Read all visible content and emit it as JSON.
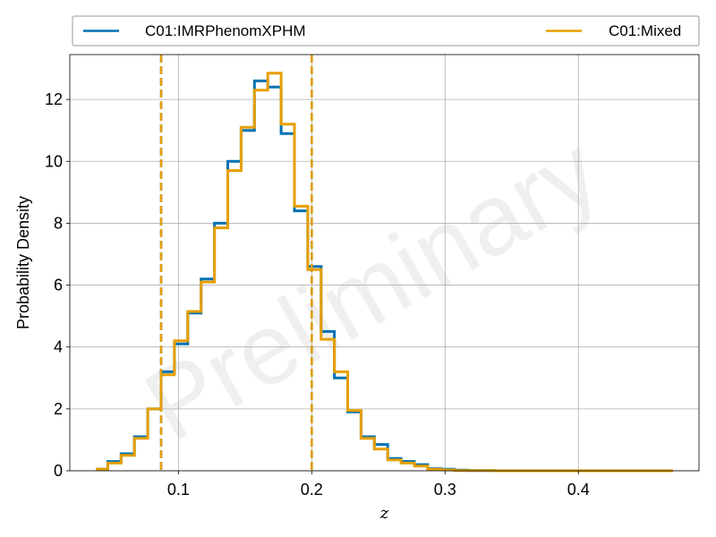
{
  "chart_data": {
    "type": "line",
    "title": "",
    "xlabel": "z",
    "ylabel": "Probability Density",
    "xlim": [
      0.0185,
      0.4905
    ],
    "ylim": [
      0,
      13.45
    ],
    "xticks": [
      0.1,
      0.2,
      0.3,
      0.4
    ],
    "xtick_labels": [
      "0.1",
      "0.2",
      "0.3",
      "0.4"
    ],
    "yticks": [
      0,
      2,
      4,
      6,
      8,
      10,
      12
    ],
    "ytick_labels": [
      "0",
      "2",
      "4",
      "6",
      "8",
      "10",
      "12"
    ],
    "grid": true,
    "legend_position": "top, outside plot",
    "watermark": "Preliminary",
    "series": [
      {
        "name": "C01:IMRPhenomXPHM",
        "color": "#0072b2",
        "edges": [
          0.038,
          0.047,
          0.057,
          0.067,
          0.077,
          0.087,
          0.097,
          0.107,
          0.117,
          0.127,
          0.137,
          0.147,
          0.157,
          0.167,
          0.177,
          0.187,
          0.197,
          0.207,
          0.217,
          0.227,
          0.237,
          0.247,
          0.257,
          0.267,
          0.277,
          0.287,
          0.297,
          0.307,
          0.317,
          0.327,
          0.337,
          0.347,
          0.357,
          0.367,
          0.377,
          0.387,
          0.397,
          0.407,
          0.417,
          0.427,
          0.437,
          0.447,
          0.457,
          0.471
        ],
        "values": [
          0.05,
          0.3,
          0.55,
          1.1,
          2.0,
          3.2,
          4.1,
          5.1,
          6.2,
          8.0,
          10.0,
          11.0,
          12.6,
          12.4,
          10.9,
          8.4,
          6.6,
          4.5,
          3.0,
          1.9,
          1.1,
          0.85,
          0.4,
          0.3,
          0.2,
          0.07,
          0.05,
          0.02,
          0.01,
          0.01,
          0.0,
          0.0,
          0.0,
          0.0,
          0.0,
          0.0,
          0.0,
          0.0,
          0.0,
          0.0,
          0.0,
          0.0,
          0.0
        ],
        "interval_lines": [
          0.087,
          0.2
        ]
      },
      {
        "name": "C01:Mixed",
        "color": "#e69f00",
        "edges": [
          0.038,
          0.047,
          0.057,
          0.067,
          0.077,
          0.087,
          0.097,
          0.107,
          0.117,
          0.127,
          0.137,
          0.147,
          0.157,
          0.167,
          0.177,
          0.187,
          0.197,
          0.207,
          0.217,
          0.227,
          0.237,
          0.247,
          0.257,
          0.267,
          0.277,
          0.287,
          0.297,
          0.307,
          0.317,
          0.327,
          0.337,
          0.347,
          0.357,
          0.367,
          0.377,
          0.387,
          0.397,
          0.407,
          0.417,
          0.427,
          0.437,
          0.447,
          0.457,
          0.471
        ],
        "values": [
          0.05,
          0.25,
          0.5,
          1.05,
          2.0,
          3.1,
          4.2,
          5.15,
          6.1,
          7.85,
          9.7,
          11.1,
          12.3,
          12.85,
          11.2,
          8.55,
          6.5,
          4.25,
          3.2,
          1.95,
          1.05,
          0.7,
          0.35,
          0.25,
          0.15,
          0.05,
          0.03,
          0.01,
          0.01,
          0.01,
          0.0,
          0.0,
          0.0,
          0.0,
          0.0,
          0.0,
          0.0,
          0.0,
          0.0,
          0.0,
          0.0,
          0.0,
          0.0
        ],
        "interval_lines": [
          0.087,
          0.2
        ]
      }
    ]
  }
}
